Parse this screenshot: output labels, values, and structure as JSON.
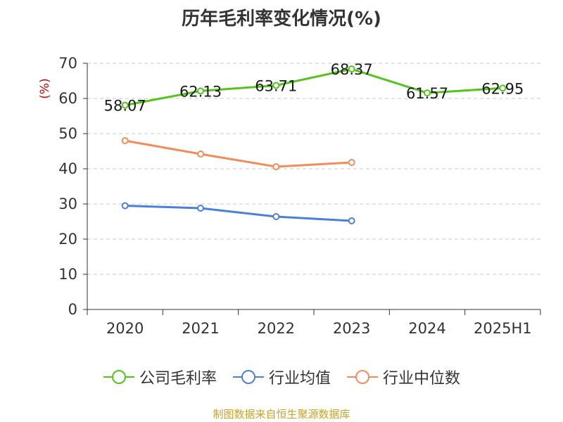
{
  "chart_data": {
    "type": "line",
    "title": "历年毛利率变化情况(%)",
    "ylabel": "(%)",
    "xlabel": "",
    "categories": [
      "2020",
      "2021",
      "2022",
      "2023",
      "2024",
      "2025H1"
    ],
    "ylim": [
      0,
      70
    ],
    "yticks": [
      0,
      10,
      20,
      30,
      40,
      50,
      60,
      70
    ],
    "grid": true,
    "legend_position": "bottom",
    "series": [
      {
        "name": "公司毛利率",
        "color": "#52c41a",
        "values": [
          58.07,
          62.13,
          63.71,
          68.37,
          61.57,
          62.95
        ],
        "labels": [
          "58.07",
          "62.13",
          "63.71",
          "68.37",
          "61.57",
          "62.95"
        ]
      },
      {
        "name": "行业均值",
        "color": "#4a7fdc",
        "values": [
          29.5,
          28.8,
          26.4,
          25.2,
          null,
          null
        ]
      },
      {
        "name": "行业中位数",
        "color": "#f28d5a",
        "values": [
          48.0,
          44.2,
          40.6,
          41.8,
          null,
          null
        ]
      }
    ]
  },
  "source": "制图数据来自恒生聚源数据库"
}
